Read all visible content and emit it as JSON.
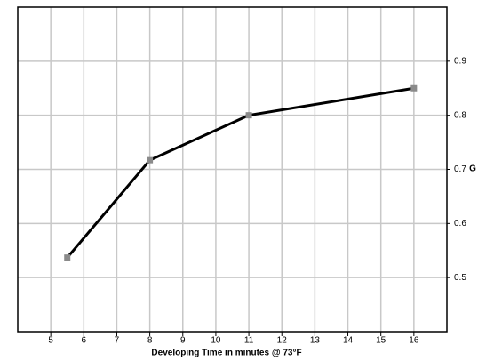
{
  "chart_data": {
    "type": "line",
    "x_label": "Developing Time in minutes @ 73°F",
    "y_label": "G",
    "x": [
      5.5,
      8,
      11,
      16
    ],
    "series": [
      {
        "name": "G",
        "color": "#000000",
        "marker_color": "#8a8a8a",
        "values": [
          0.537,
          0.717,
          0.8,
          0.85
        ]
      }
    ],
    "xlim": [
      4,
      17
    ],
    "xticks": [
      5,
      6,
      7,
      8,
      9,
      10,
      11,
      12,
      13,
      14,
      15,
      16
    ],
    "ylim": [
      0.4,
      1.0
    ],
    "yticks": [
      0.5,
      0.6,
      0.7,
      0.8,
      0.9
    ],
    "grid": true,
    "y_axis_side": "right"
  }
}
